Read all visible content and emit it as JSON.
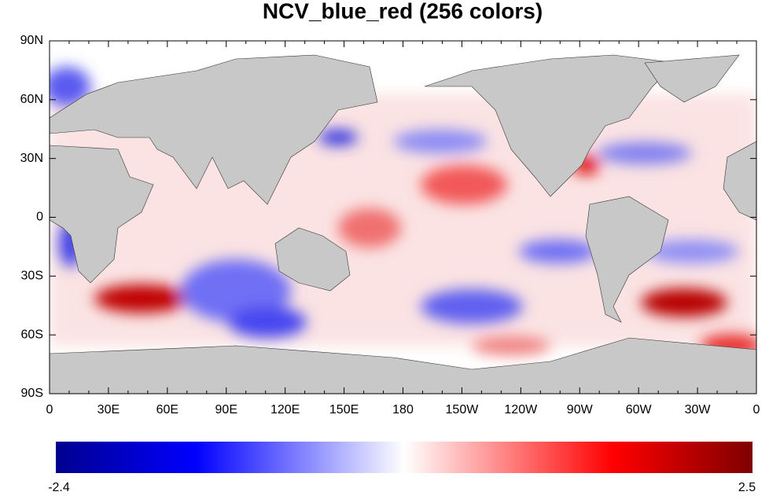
{
  "title": "NCV_blue_red (256 colors)",
  "lat_labels": [
    "90N",
    "60N",
    "30N",
    "0",
    "30S",
    "60S",
    "90S"
  ],
  "lon_labels": [
    "0",
    "30E",
    "60E",
    "90E",
    "120E",
    "150E",
    "180",
    "150W",
    "120W",
    "90W",
    "60W",
    "30W",
    "0"
  ],
  "colorbar": {
    "min": -2.4,
    "max": 2.5
  }
}
